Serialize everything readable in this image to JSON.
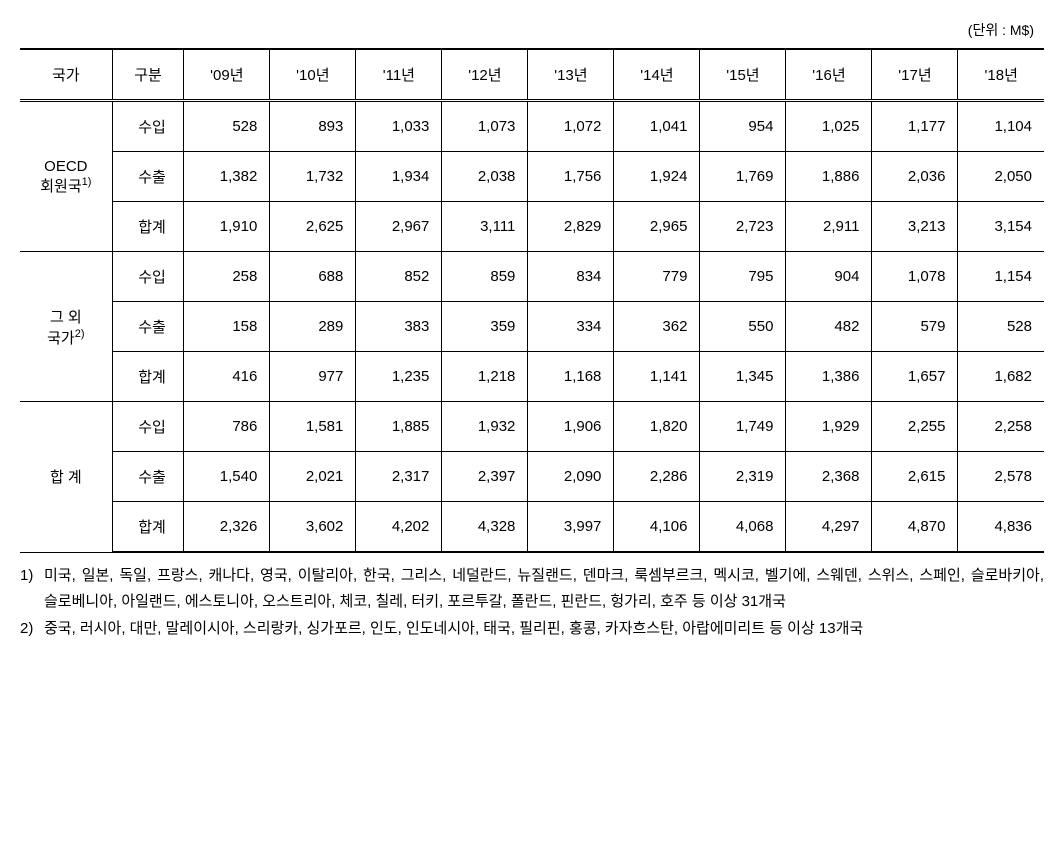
{
  "unit_label": "(단위 : M$)",
  "headers": {
    "country": "국가",
    "category": "구분",
    "years": [
      "'09년",
      "'10년",
      "'11년",
      "'12년",
      "'13년",
      "'14년",
      "'15년",
      "'16년",
      "'17년",
      "'18년"
    ]
  },
  "groups": [
    {
      "label_line1": "OECD",
      "label_line2": "회원국",
      "sup": "1)",
      "rows": [
        {
          "cat": "수입",
          "vals": [
            "528",
            "893",
            "1,033",
            "1,073",
            "1,072",
            "1,041",
            "954",
            "1,025",
            "1,177",
            "1,104"
          ]
        },
        {
          "cat": "수출",
          "vals": [
            "1,382",
            "1,732",
            "1,934",
            "2,038",
            "1,756",
            "1,924",
            "1,769",
            "1,886",
            "2,036",
            "2,050"
          ]
        },
        {
          "cat": "합계",
          "vals": [
            "1,910",
            "2,625",
            "2,967",
            "3,111",
            "2,829",
            "2,965",
            "2,723",
            "2,911",
            "3,213",
            "3,154"
          ]
        }
      ]
    },
    {
      "label_line1": "그 외",
      "label_line2": "국가",
      "sup": "2)",
      "rows": [
        {
          "cat": "수입",
          "vals": [
            "258",
            "688",
            "852",
            "859",
            "834",
            "779",
            "795",
            "904",
            "1,078",
            "1,154"
          ]
        },
        {
          "cat": "수출",
          "vals": [
            "158",
            "289",
            "383",
            "359",
            "334",
            "362",
            "550",
            "482",
            "579",
            "528"
          ]
        },
        {
          "cat": "합계",
          "vals": [
            "416",
            "977",
            "1,235",
            "1,218",
            "1,168",
            "1,141",
            "1,345",
            "1,386",
            "1,657",
            "1,682"
          ]
        }
      ]
    },
    {
      "label_line1": "합 계",
      "label_line2": "",
      "sup": "",
      "rows": [
        {
          "cat": "수입",
          "vals": [
            "786",
            "1,581",
            "1,885",
            "1,932",
            "1,906",
            "1,820",
            "1,749",
            "1,929",
            "2,255",
            "2,258"
          ]
        },
        {
          "cat": "수출",
          "vals": [
            "1,540",
            "2,021",
            "2,317",
            "2,397",
            "2,090",
            "2,286",
            "2,319",
            "2,368",
            "2,615",
            "2,578"
          ]
        },
        {
          "cat": "합계",
          "vals": [
            "2,326",
            "3,602",
            "4,202",
            "4,328",
            "3,997",
            "4,106",
            "4,068",
            "4,297",
            "4,870",
            "4,836"
          ]
        }
      ]
    }
  ],
  "footnotes": [
    {
      "num": "1)",
      "text": "미국, 일본, 독일, 프랑스, 캐나다, 영국, 이탈리아, 한국, 그리스, 네덜란드, 뉴질랜드, 덴마크, 룩셈부르크, 멕시코, 벨기에, 스웨덴, 스위스, 스페인, 슬로바키아, 슬로베니아, 아일랜드, 에스토니아, 오스트리아, 체코, 칠레, 터키, 포르투갈, 폴란드, 핀란드, 헝가리, 호주 등 이상 31개국"
    },
    {
      "num": "2)",
      "text": "중국, 러시아, 대만, 말레이시아, 스리랑카, 싱가포르, 인도, 인도네시아, 태국, 필리핀, 홍콩, 카자흐스탄, 아랍에미리트 등 이상 13개국"
    }
  ],
  "style": {
    "background_color": "#ffffff",
    "text_color": "#000000",
    "border_color": "#000000",
    "font_size_body": 15,
    "font_size_unit": 14,
    "row_padding_v": 14,
    "top_border_width": 2,
    "bottom_border_width": 2
  }
}
